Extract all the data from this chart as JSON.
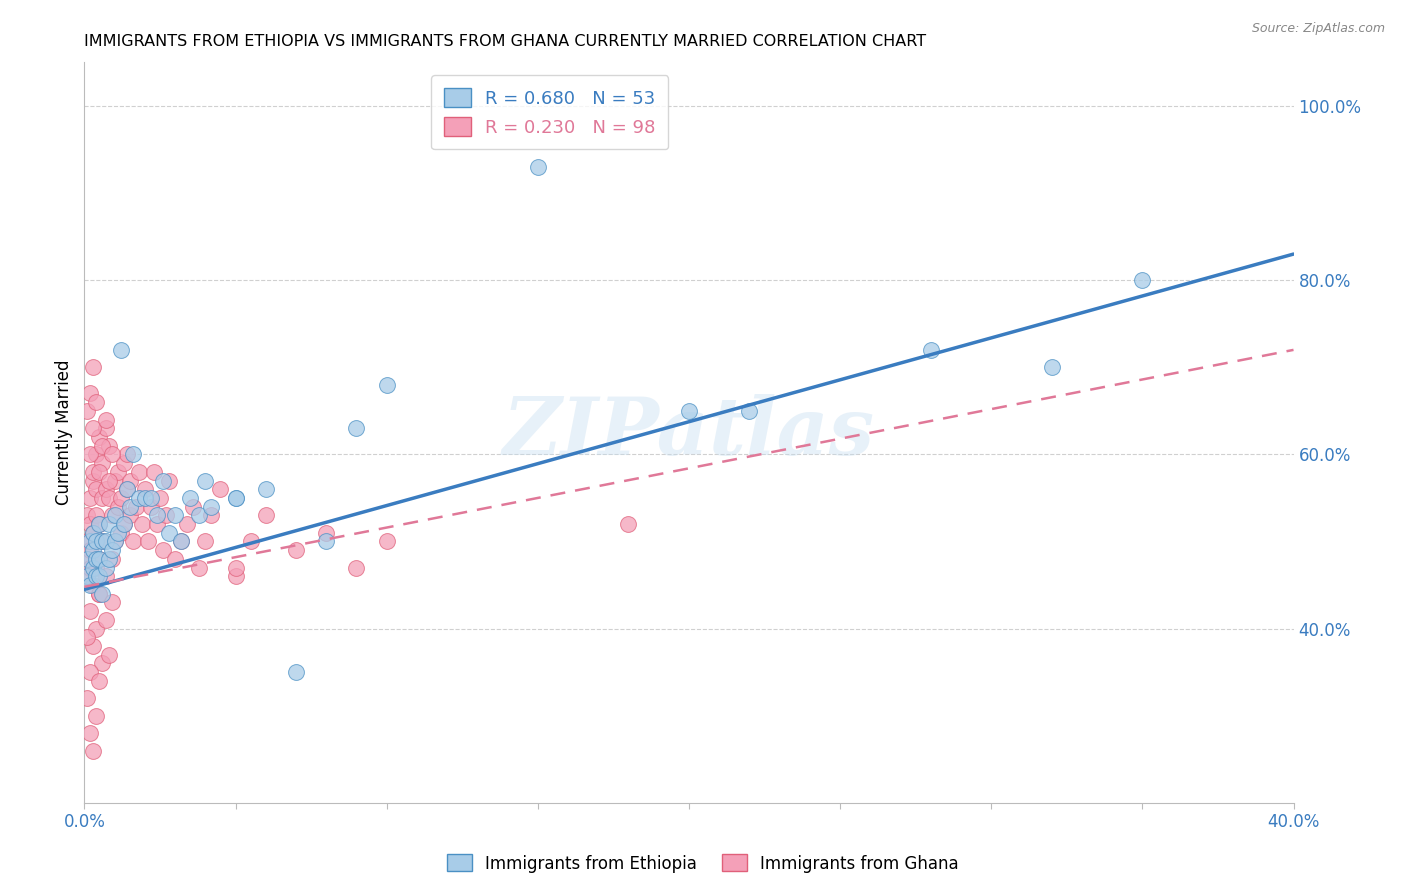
{
  "title": "IMMIGRANTS FROM ETHIOPIA VS IMMIGRANTS FROM GHANA CURRENTLY MARRIED CORRELATION CHART",
  "source": "Source: ZipAtlas.com",
  "ylabel": "Currently Married",
  "watermark": "ZIPatlas",
  "xlim": [
    0.0,
    0.4
  ],
  "ylim": [
    0.2,
    1.05
  ],
  "ytick_positions": [
    0.4,
    0.6,
    0.8,
    1.0
  ],
  "ytick_labels": [
    "40.0%",
    "60.0%",
    "80.0%",
    "100.0%"
  ],
  "xtick_positions": [
    0.0,
    0.05,
    0.1,
    0.15,
    0.2,
    0.25,
    0.3,
    0.35,
    0.4
  ],
  "xtick_labels": [
    "0.0%",
    "",
    "",
    "",
    "",
    "",
    "",
    "",
    "40.0%"
  ],
  "legend_eth": "R = 0.680   N = 53",
  "legend_gha": "R = 0.230   N = 98",
  "ethiopia_fill": "#a8cce8",
  "ethiopia_edge": "#4a90c4",
  "ghana_fill": "#f4a0b8",
  "ghana_edge": "#e0607a",
  "eth_line_color": "#3a7cc0",
  "gha_line_color": "#e07898",
  "eth_line_y0": 0.445,
  "eth_line_y1": 0.83,
  "gha_line_y0": 0.448,
  "gha_line_y1": 0.72,
  "ethiopia_x": [
    0.001,
    0.001,
    0.002,
    0.002,
    0.003,
    0.003,
    0.003,
    0.004,
    0.004,
    0.004,
    0.005,
    0.005,
    0.005,
    0.006,
    0.006,
    0.007,
    0.007,
    0.008,
    0.008,
    0.009,
    0.01,
    0.01,
    0.011,
    0.012,
    0.013,
    0.014,
    0.015,
    0.016,
    0.018,
    0.02,
    0.022,
    0.024,
    0.026,
    0.028,
    0.03,
    0.032,
    0.035,
    0.038,
    0.04,
    0.042,
    0.05,
    0.06,
    0.07,
    0.08,
    0.09,
    0.1,
    0.15,
    0.2,
    0.22,
    0.28,
    0.32,
    0.35,
    0.05
  ],
  "ethiopia_y": [
    0.48,
    0.46,
    0.5,
    0.45,
    0.49,
    0.47,
    0.51,
    0.46,
    0.48,
    0.5,
    0.52,
    0.46,
    0.48,
    0.5,
    0.44,
    0.5,
    0.47,
    0.52,
    0.48,
    0.49,
    0.53,
    0.5,
    0.51,
    0.72,
    0.52,
    0.56,
    0.54,
    0.6,
    0.55,
    0.55,
    0.55,
    0.53,
    0.57,
    0.51,
    0.53,
    0.5,
    0.55,
    0.53,
    0.57,
    0.54,
    0.55,
    0.56,
    0.35,
    0.5,
    0.63,
    0.68,
    0.93,
    0.65,
    0.65,
    0.72,
    0.7,
    0.8,
    0.55
  ],
  "ghana_x": [
    0.001,
    0.001,
    0.001,
    0.001,
    0.002,
    0.002,
    0.002,
    0.002,
    0.003,
    0.003,
    0.003,
    0.003,
    0.004,
    0.004,
    0.004,
    0.004,
    0.005,
    0.005,
    0.005,
    0.005,
    0.006,
    0.006,
    0.006,
    0.007,
    0.007,
    0.007,
    0.008,
    0.008,
    0.009,
    0.009,
    0.01,
    0.01,
    0.011,
    0.011,
    0.012,
    0.012,
    0.013,
    0.013,
    0.014,
    0.014,
    0.015,
    0.015,
    0.016,
    0.017,
    0.018,
    0.019,
    0.02,
    0.021,
    0.022,
    0.023,
    0.024,
    0.025,
    0.026,
    0.027,
    0.028,
    0.03,
    0.032,
    0.034,
    0.036,
    0.038,
    0.04,
    0.042,
    0.045,
    0.05,
    0.055,
    0.06,
    0.07,
    0.08,
    0.09,
    0.1,
    0.002,
    0.003,
    0.004,
    0.005,
    0.006,
    0.007,
    0.008,
    0.009,
    0.001,
    0.002,
    0.003,
    0.001,
    0.002,
    0.001,
    0.002,
    0.003,
    0.004,
    0.005,
    0.18,
    0.05,
    0.002,
    0.003,
    0.004,
    0.005,
    0.006,
    0.007,
    0.008,
    0.009
  ],
  "ghana_y": [
    0.5,
    0.53,
    0.48,
    0.46,
    0.55,
    0.52,
    0.49,
    0.47,
    0.57,
    0.51,
    0.58,
    0.45,
    0.6,
    0.53,
    0.47,
    0.56,
    0.48,
    0.52,
    0.62,
    0.44,
    0.59,
    0.5,
    0.55,
    0.56,
    0.63,
    0.46,
    0.55,
    0.61,
    0.48,
    0.53,
    0.57,
    0.5,
    0.54,
    0.58,
    0.51,
    0.55,
    0.59,
    0.52,
    0.56,
    0.6,
    0.53,
    0.57,
    0.5,
    0.54,
    0.58,
    0.52,
    0.56,
    0.5,
    0.54,
    0.58,
    0.52,
    0.55,
    0.49,
    0.53,
    0.57,
    0.48,
    0.5,
    0.52,
    0.54,
    0.47,
    0.5,
    0.53,
    0.56,
    0.46,
    0.5,
    0.53,
    0.49,
    0.51,
    0.47,
    0.5,
    0.42,
    0.38,
    0.4,
    0.44,
    0.36,
    0.41,
    0.37,
    0.43,
    0.65,
    0.67,
    0.7,
    0.39,
    0.35,
    0.32,
    0.28,
    0.26,
    0.3,
    0.34,
    0.52,
    0.47,
    0.6,
    0.63,
    0.66,
    0.58,
    0.61,
    0.64,
    0.57,
    0.6
  ]
}
